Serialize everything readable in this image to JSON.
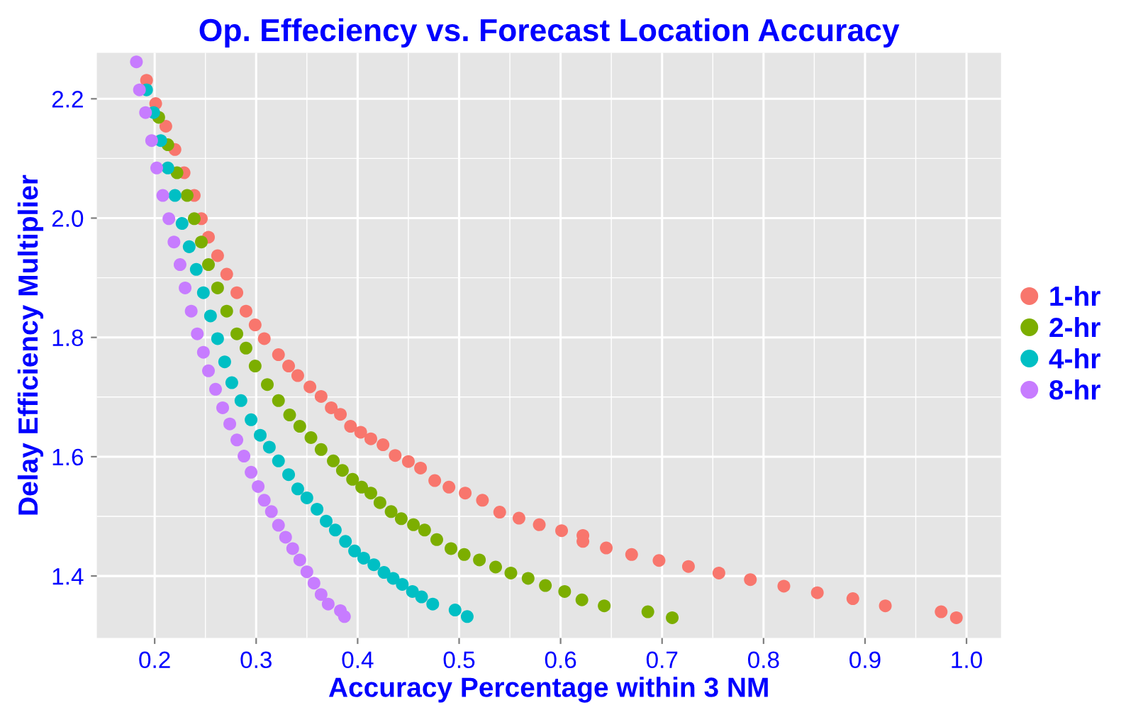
{
  "chart_data": {
    "type": "scatter",
    "title": "Op. Effeciency vs. Forecast Location Accuracy",
    "xlabel": "Accuracy Percentage within 3 NM",
    "ylabel": "Delay Efficiency Multiplier",
    "xlim": [
      0.143,
      1.034
    ],
    "ylim": [
      1.296,
      2.277
    ],
    "xticks": [
      {
        "value": 0.2,
        "label": "0.2"
      },
      {
        "value": 0.3,
        "label": "0.3"
      },
      {
        "value": 0.4,
        "label": "0.4"
      },
      {
        "value": 0.5,
        "label": "0.5"
      },
      {
        "value": 0.6,
        "label": "0.6"
      },
      {
        "value": 0.7,
        "label": "0.7"
      },
      {
        "value": 0.8,
        "label": "0.8"
      },
      {
        "value": 0.9,
        "label": "0.9"
      },
      {
        "value": 1.0,
        "label": "1.0"
      }
    ],
    "yticks": [
      {
        "value": 1.4,
        "label": "1.4"
      },
      {
        "value": 1.6,
        "label": "1.6"
      },
      {
        "value": 1.8,
        "label": "1.8"
      },
      {
        "value": 2.0,
        "label": "2.0"
      },
      {
        "value": 2.2,
        "label": "2.2"
      }
    ],
    "grid": true,
    "legend": "right",
    "marker": "circle",
    "series": [
      {
        "name": "1-hr",
        "color": "#f8766d",
        "x": [
          0.192,
          0.201,
          0.211,
          0.22,
          0.229,
          0.239,
          0.246,
          0.253,
          0.262,
          0.271,
          0.281,
          0.29,
          0.299,
          0.308,
          0.322,
          0.332,
          0.341,
          0.353,
          0.364,
          0.374,
          0.383,
          0.393,
          0.403,
          0.413,
          0.425,
          0.437,
          0.45,
          0.462,
          0.476,
          0.49,
          0.506,
          0.523,
          0.54,
          0.559,
          0.579,
          0.601,
          0.622,
          0.622,
          0.645,
          0.67,
          0.697,
          0.726,
          0.756,
          0.787,
          0.82,
          0.853,
          0.888,
          0.92,
          0.975,
          0.99
        ],
        "values": [
          2.231,
          2.192,
          2.154,
          2.115,
          2.076,
          2.038,
          1.999,
          1.968,
          1.937,
          1.906,
          1.875,
          1.844,
          1.821,
          1.798,
          1.771,
          1.752,
          1.736,
          1.717,
          1.701,
          1.682,
          1.671,
          1.651,
          1.641,
          1.63,
          1.62,
          1.602,
          1.592,
          1.581,
          1.56,
          1.549,
          1.539,
          1.527,
          1.507,
          1.497,
          1.486,
          1.476,
          1.468,
          1.458,
          1.447,
          1.436,
          1.426,
          1.416,
          1.405,
          1.394,
          1.383,
          1.372,
          1.362,
          1.35,
          1.34,
          1.33
        ]
      },
      {
        "name": "2-hr",
        "color": "#7cae00",
        "x": [
          0.204,
          0.213,
          0.222,
          0.232,
          0.239,
          0.246,
          0.253,
          0.262,
          0.271,
          0.281,
          0.29,
          0.299,
          0.311,
          0.322,
          0.333,
          0.343,
          0.354,
          0.364,
          0.376,
          0.385,
          0.395,
          0.404,
          0.413,
          0.422,
          0.433,
          0.443,
          0.455,
          0.466,
          0.478,
          0.492,
          0.505,
          0.52,
          0.536,
          0.551,
          0.568,
          0.585,
          0.604,
          0.621,
          0.643,
          0.686,
          0.71
        ],
        "values": [
          2.169,
          2.123,
          2.076,
          2.038,
          1.999,
          1.96,
          1.922,
          1.883,
          1.844,
          1.806,
          1.782,
          1.752,
          1.721,
          1.694,
          1.67,
          1.651,
          1.632,
          1.612,
          1.593,
          1.577,
          1.562,
          1.549,
          1.539,
          1.523,
          1.508,
          1.496,
          1.486,
          1.477,
          1.461,
          1.446,
          1.436,
          1.427,
          1.415,
          1.405,
          1.396,
          1.384,
          1.374,
          1.36,
          1.35,
          1.34,
          1.33
        ]
      },
      {
        "name": "4-hr",
        "color": "#00bfc4",
        "x": [
          0.192,
          0.199,
          0.206,
          0.213,
          0.22,
          0.227,
          0.234,
          0.241,
          0.248,
          0.255,
          0.262,
          0.269,
          0.276,
          0.285,
          0.295,
          0.304,
          0.313,
          0.322,
          0.332,
          0.341,
          0.35,
          0.36,
          0.369,
          0.378,
          0.388,
          0.397,
          0.406,
          0.416,
          0.426,
          0.435,
          0.444,
          0.454,
          0.463,
          0.474,
          0.496,
          0.508
        ],
        "values": [
          2.215,
          2.177,
          2.13,
          2.084,
          2.038,
          1.991,
          1.952,
          1.914,
          1.875,
          1.836,
          1.798,
          1.759,
          1.724,
          1.694,
          1.662,
          1.636,
          1.616,
          1.593,
          1.57,
          1.546,
          1.531,
          1.512,
          1.492,
          1.477,
          1.458,
          1.442,
          1.43,
          1.419,
          1.406,
          1.396,
          1.386,
          1.374,
          1.365,
          1.353,
          1.343,
          1.332
        ]
      },
      {
        "name": "8-hr",
        "color": "#c77cff",
        "x": [
          0.182,
          0.185,
          0.191,
          0.197,
          0.202,
          0.208,
          0.214,
          0.219,
          0.225,
          0.23,
          0.236,
          0.242,
          0.248,
          0.253,
          0.26,
          0.267,
          0.274,
          0.281,
          0.288,
          0.295,
          0.302,
          0.308,
          0.315,
          0.322,
          0.329,
          0.336,
          0.343,
          0.35,
          0.357,
          0.364,
          0.371,
          0.383,
          0.387
        ],
        "values": [
          2.262,
          2.215,
          2.177,
          2.13,
          2.084,
          2.038,
          1.999,
          1.96,
          1.922,
          1.883,
          1.844,
          1.806,
          1.775,
          1.744,
          1.713,
          1.682,
          1.655,
          1.628,
          1.601,
          1.574,
          1.55,
          1.527,
          1.508,
          1.485,
          1.465,
          1.446,
          1.427,
          1.407,
          1.388,
          1.369,
          1.353,
          1.342,
          1.332
        ]
      }
    ]
  }
}
